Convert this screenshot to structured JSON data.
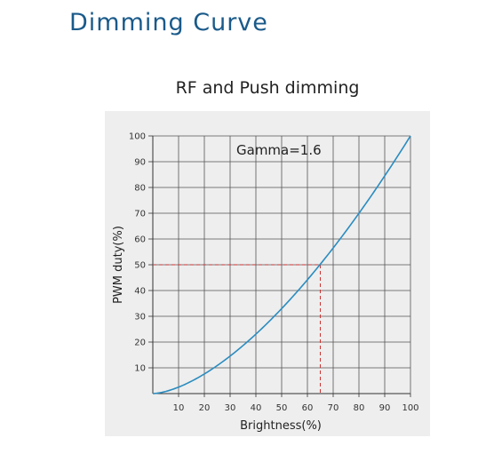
{
  "header": {
    "title": "Dimming Curve"
  },
  "chart_data": {
    "type": "line",
    "title": "RF and Push dimming",
    "xlabel": "Brightness(%)",
    "ylabel": "PWM duty(%)",
    "annotation": "Gamma=1.6",
    "xlim": [
      0,
      100
    ],
    "ylim": [
      0,
      100
    ],
    "x_ticks": [
      10,
      20,
      30,
      40,
      50,
      60,
      70,
      80,
      90,
      100
    ],
    "y_ticks": [
      10,
      20,
      30,
      40,
      50,
      60,
      70,
      80,
      90,
      100
    ],
    "grid": true,
    "series": [
      {
        "gamma": 1.6,
        "x": [
          0,
          10,
          20,
          30,
          40,
          50,
          60,
          65,
          70,
          80,
          90,
          100
        ],
        "y": [
          0,
          2.5,
          7.6,
          14.6,
          23.1,
          33.0,
          44.2,
          50.2,
          56.5,
          70.0,
          84.5,
          100
        ]
      }
    ],
    "reference": {
      "x": 65,
      "y": 50
    },
    "colors": {
      "curve": "#2a8cc0",
      "reference": "#cc3333",
      "grid": "#555555",
      "plot_bg": "#eeeeee"
    }
  }
}
